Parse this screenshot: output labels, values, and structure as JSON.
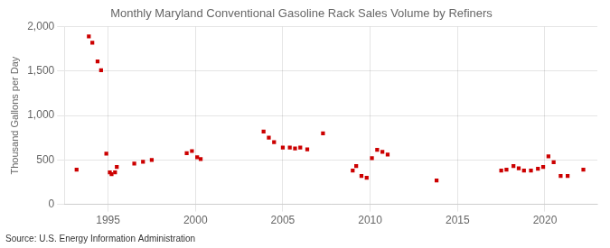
{
  "chart_data": {
    "type": "scatter",
    "title": "Monthly Maryland Conventional Gasoline Rack Sales Volume by Refiners",
    "ylabel": "Thousand Gallons per Day",
    "source": "Source: U.S. Energy Information Administration",
    "x": [
      1993.2,
      1993.9,
      1994.1,
      1994.4,
      1994.6,
      1994.9,
      1995.1,
      1995.2,
      1995.4,
      1995.5,
      1996.5,
      1997.0,
      1997.5,
      1999.5,
      1999.8,
      2000.1,
      2000.3,
      2003.9,
      2004.2,
      2004.5,
      2005.0,
      2005.4,
      2005.7,
      2006.0,
      2006.4,
      2007.3,
      2009.0,
      2009.2,
      2009.5,
      2009.8,
      2010.1,
      2010.4,
      2010.7,
      2011.0,
      2013.8,
      2017.5,
      2017.8,
      2018.2,
      2018.5,
      2018.8,
      2019.2,
      2019.6,
      2019.9,
      2020.2,
      2020.5,
      2020.9,
      2021.3,
      2022.2
    ],
    "values": [
      390,
      1890,
      1820,
      1610,
      1510,
      570,
      360,
      340,
      360,
      420,
      460,
      480,
      500,
      575,
      600,
      530,
      510,
      820,
      750,
      700,
      640,
      640,
      630,
      640,
      620,
      800,
      380,
      430,
      320,
      300,
      520,
      615,
      590,
      560,
      270,
      380,
      390,
      430,
      405,
      380,
      380,
      400,
      420,
      540,
      475,
      320,
      320,
      390
    ],
    "color": "#cc0000",
    "marker": "square",
    "xlim": [
      1992.5,
      2023
    ],
    "xticks": [
      1995,
      2000,
      2005,
      2010,
      2015,
      2020
    ],
    "ylim": [
      0,
      2000
    ],
    "yticks": [
      0,
      500,
      {
        "value": 1000,
        "label": "1,000"
      },
      {
        "value": 1500,
        "label": "1,500"
      },
      {
        "value": 2000,
        "label": "2,000"
      }
    ],
    "grid": true
  }
}
